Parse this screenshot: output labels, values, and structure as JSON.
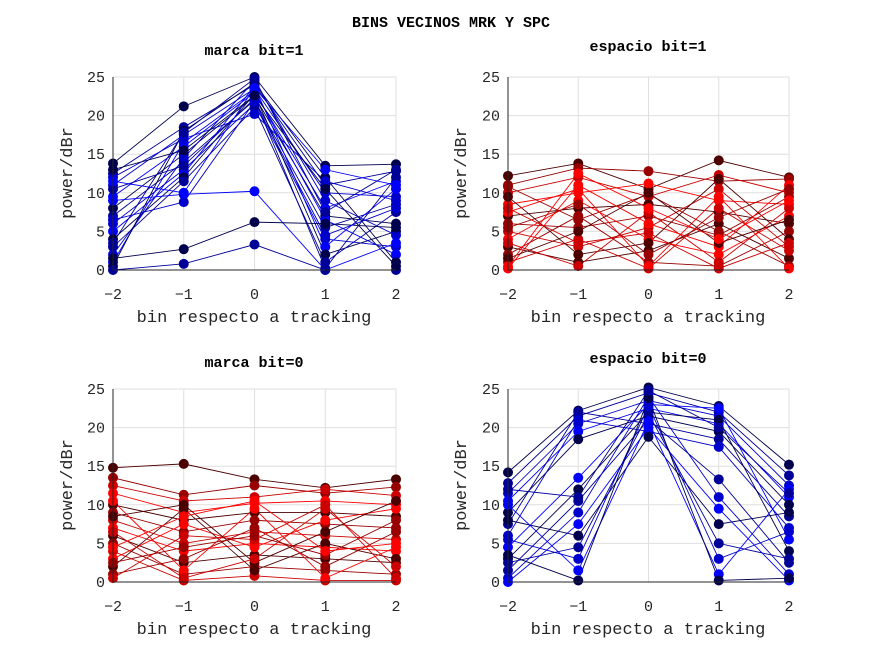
{
  "figure": {
    "suptitle": "BINS VECINOS MRK Y SPC"
  },
  "chart_data": [
    {
      "type": "line",
      "title": "marca bit=1",
      "xlabel": "bin respecto a tracking",
      "ylabel": "power/dBr",
      "x": [
        -2,
        -1,
        0,
        1,
        2
      ],
      "xticks": [
        "-2",
        "-1",
        "0",
        "1",
        "2"
      ],
      "yticks": [
        "0",
        "5",
        "10",
        "15",
        "20",
        "25"
      ],
      "xlim": [
        -2,
        2
      ],
      "ylim": [
        0,
        25
      ],
      "grid": true,
      "color_scheme": "blue",
      "colors": [
        "#00004d",
        "#000099",
        "#0000cc",
        "#0000ff"
      ],
      "series": [
        {
          "values": [
            13.8,
            21.2,
            25.0,
            13.5,
            13.7
          ]
        },
        {
          "values": [
            12.5,
            18.5,
            24.0,
            11.0,
            12.8
          ]
        },
        {
          "values": [
            11.0,
            17.5,
            23.5,
            10.0,
            9.5
          ]
        },
        {
          "values": [
            9.5,
            16.0,
            23.0,
            8.0,
            11.5
          ]
        },
        {
          "values": [
            8.0,
            15.0,
            22.5,
            7.0,
            6.0
          ]
        },
        {
          "values": [
            7.0,
            14.0,
            22.0,
            5.5,
            8.5
          ]
        },
        {
          "values": [
            6.0,
            13.0,
            21.5,
            4.0,
            3.0
          ]
        },
        {
          "values": [
            5.0,
            12.5,
            23.8,
            3.0,
            10.5
          ]
        },
        {
          "values": [
            4.0,
            12.0,
            22.8,
            2.0,
            5.0
          ]
        },
        {
          "values": [
            3.0,
            11.5,
            21.0,
            1.0,
            7.5
          ]
        },
        {
          "values": [
            2.0,
            14.5,
            24.5,
            9.0,
            4.5
          ]
        },
        {
          "values": [
            1.0,
            16.5,
            23.2,
            6.5,
            2.0
          ]
        },
        {
          "values": [
            0.5,
            18.0,
            24.2,
            12.0,
            1.0
          ]
        },
        {
          "values": [
            10.5,
            13.5,
            22.2,
            0.2,
            12.0
          ]
        },
        {
          "values": [
            12.0,
            17.0,
            20.2,
            11.5,
            9.0
          ]
        },
        {
          "values": [
            9.0,
            9.8,
            10.2,
            0.0,
            3.5
          ]
        },
        {
          "values": [
            1.5,
            2.7,
            6.2,
            6.0,
            5.5
          ]
        },
        {
          "values": [
            0.0,
            0.8,
            3.3,
            0.0,
            0.0
          ]
        },
        {
          "values": [
            6.5,
            8.8,
            21.8,
            4.5,
            8.0
          ]
        },
        {
          "values": [
            11.5,
            10.0,
            23.6,
            13.0,
            11.0
          ]
        },
        {
          "values": [
            13.0,
            15.5,
            22.6,
            10.5,
            0.5
          ]
        },
        {
          "values": [
            3.5,
            17.8,
            24.8,
            7.5,
            13.0
          ]
        }
      ]
    },
    {
      "type": "line",
      "title": "espacio bit=1",
      "xlabel": "bin respecto a tracking",
      "ylabel": "power/dBr",
      "x": [
        -2,
        -1,
        0,
        1,
        2
      ],
      "xticks": [
        "-2",
        "-1",
        "0",
        "1",
        "2"
      ],
      "yticks": [
        "0",
        "5",
        "10",
        "15",
        "20",
        "25"
      ],
      "xlim": [
        -2,
        2
      ],
      "ylim": [
        0,
        25
      ],
      "grid": true,
      "color_scheme": "red",
      "colors": [
        "#4d0000",
        "#990000",
        "#cc0000",
        "#ff0000"
      ],
      "series": [
        {
          "values": [
            12.2,
            13.8,
            10.5,
            14.2,
            12.0
          ]
        },
        {
          "values": [
            11.0,
            13.2,
            12.8,
            11.5,
            11.8
          ]
        },
        {
          "values": [
            10.0,
            12.0,
            9.5,
            12.3,
            10.0
          ]
        },
        {
          "values": [
            8.5,
            10.0,
            11.2,
            9.0,
            8.5
          ]
        },
        {
          "values": [
            7.0,
            8.0,
            8.5,
            7.5,
            6.0
          ]
        },
        {
          "values": [
            6.0,
            5.5,
            7.0,
            4.5,
            9.5
          ]
        },
        {
          "values": [
            5.0,
            3.0,
            5.5,
            10.5,
            3.0
          ]
        },
        {
          "values": [
            4.0,
            9.0,
            4.0,
            2.0,
            7.0
          ]
        },
        {
          "values": [
            3.0,
            1.0,
            2.5,
            6.0,
            1.5
          ]
        },
        {
          "values": [
            2.0,
            7.0,
            1.0,
            0.5,
            5.0
          ]
        },
        {
          "values": [
            1.0,
            4.0,
            0.2,
            8.0,
            2.5
          ]
        },
        {
          "values": [
            0.2,
            11.0,
            6.0,
            3.0,
            11.0
          ]
        },
        {
          "values": [
            9.5,
            2.0,
            3.5,
            11.8,
            4.0
          ]
        },
        {
          "values": [
            10.8,
            6.5,
            9.8,
            5.0,
            0.5
          ]
        },
        {
          "values": [
            3.5,
            0.5,
            7.5,
            1.0,
            8.0
          ]
        },
        {
          "values": [
            7.5,
            10.5,
            0.5,
            9.5,
            0.2
          ]
        },
        {
          "values": [
            1.5,
            5.0,
            10.0,
            3.5,
            6.5
          ]
        },
        {
          "values": [
            5.5,
            8.5,
            2.0,
            6.8,
            10.5
          ]
        },
        {
          "values": [
            8.0,
            3.5,
            4.8,
            0.2,
            3.5
          ]
        },
        {
          "values": [
            0.5,
            12.5,
            8.0,
            4.0,
            9.0
          ]
        }
      ]
    },
    {
      "type": "line",
      "title": "marca bit=0",
      "xlabel": "bin respecto a tracking",
      "ylabel": "power/dBr",
      "x": [
        -2,
        -1,
        0,
        1,
        2
      ],
      "xticks": [
        "-2",
        "-1",
        "0",
        "1",
        "2"
      ],
      "yticks": [
        "0",
        "5",
        "10",
        "15",
        "20",
        "25"
      ],
      "xlim": [
        -2,
        2
      ],
      "ylim": [
        0,
        25
      ],
      "grid": true,
      "color_scheme": "red",
      "colors": [
        "#4d0000",
        "#990000",
        "#cc0000",
        "#ff0000"
      ],
      "series": [
        {
          "values": [
            14.8,
            15.3,
            13.3,
            12.2,
            13.3
          ]
        },
        {
          "values": [
            13.5,
            11.3,
            12.5,
            11.5,
            12.3
          ]
        },
        {
          "values": [
            12.5,
            10.5,
            11.0,
            12.0,
            11.2
          ]
        },
        {
          "values": [
            11.5,
            9.0,
            10.2,
            10.5,
            10.0
          ]
        },
        {
          "values": [
            10.0,
            8.0,
            9.0,
            9.0,
            8.5
          ]
        },
        {
          "values": [
            9.0,
            6.5,
            8.0,
            7.5,
            7.0
          ]
        },
        {
          "values": [
            8.0,
            5.0,
            6.5,
            6.0,
            5.5
          ]
        },
        {
          "values": [
            7.0,
            4.0,
            5.0,
            4.5,
            4.0
          ]
        },
        {
          "values": [
            6.0,
            2.5,
            3.5,
            3.0,
            2.5
          ]
        },
        {
          "values": [
            5.0,
            1.0,
            2.0,
            1.5,
            1.0
          ]
        },
        {
          "values": [
            4.0,
            0.2,
            0.8,
            0.2,
            0.2
          ]
        },
        {
          "values": [
            3.0,
            7.5,
            4.5,
            8.0,
            9.5
          ]
        },
        {
          "values": [
            2.0,
            9.5,
            1.5,
            5.0,
            3.0
          ]
        },
        {
          "values": [
            1.0,
            3.0,
            7.0,
            2.0,
            6.5
          ]
        },
        {
          "values": [
            0.5,
            6.0,
            5.5,
            10.0,
            0.5
          ]
        },
        {
          "values": [
            10.5,
            1.5,
            9.5,
            0.5,
            4.5
          ]
        },
        {
          "values": [
            8.5,
            10.0,
            2.5,
            6.5,
            10.5
          ]
        },
        {
          "values": [
            2.5,
            4.5,
            6.0,
            3.5,
            8.0
          ]
        },
        {
          "values": [
            6.5,
            0.5,
            3.0,
            9.5,
            2.0
          ]
        },
        {
          "values": [
            4.5,
            8.5,
            10.5,
            4.0,
            5.0
          ]
        }
      ]
    },
    {
      "type": "line",
      "title": "espacio bit=0",
      "xlabel": "bin respecto a tracking",
      "ylabel": "power/dBr",
      "x": [
        -2,
        -1,
        0,
        1,
        2
      ],
      "xticks": [
        "-2",
        "-1",
        "0",
        "1",
        "2"
      ],
      "yticks": [
        "0",
        "5",
        "10",
        "15",
        "20",
        "25"
      ],
      "xlim": [
        -2,
        2
      ],
      "ylim": [
        0,
        25
      ],
      "grid": true,
      "color_scheme": "blue",
      "colors": [
        "#00004d",
        "#000099",
        "#0000cc",
        "#0000ff"
      ],
      "series": [
        {
          "values": [
            14.2,
            22.2,
            25.2,
            22.8,
            15.2
          ]
        },
        {
          "values": [
            12.8,
            21.5,
            24.5,
            22.0,
            13.8
          ]
        },
        {
          "values": [
            11.5,
            20.5,
            23.5,
            21.5,
            12.5
          ]
        },
        {
          "values": [
            10.5,
            19.5,
            22.5,
            20.5,
            11.0
          ]
        },
        {
          "values": [
            9.0,
            18.5,
            21.5,
            19.5,
            10.0
          ]
        },
        {
          "values": [
            7.5,
            22.0,
            20.5,
            18.5,
            8.5
          ]
        },
        {
          "values": [
            6.0,
            21.0,
            19.5,
            17.5,
            7.0
          ]
        },
        {
          "values": [
            4.5,
            13.5,
            23.0,
            22.5,
            5.5
          ]
        },
        {
          "values": [
            3.0,
            12.0,
            22.0,
            21.0,
            4.0
          ]
        },
        {
          "values": [
            1.5,
            10.5,
            21.0,
            13.3,
            2.5
          ]
        },
        {
          "values": [
            0.5,
            9.0,
            24.0,
            11.0,
            1.0
          ]
        },
        {
          "values": [
            0.0,
            7.5,
            20.0,
            9.5,
            0.2
          ]
        },
        {
          "values": [
            8.0,
            6.0,
            18.8,
            7.5,
            9.0
          ]
        },
        {
          "values": [
            2.5,
            4.5,
            21.8,
            5.0,
            3.0
          ]
        },
        {
          "values": [
            5.5,
            3.0,
            22.8,
            3.0,
            6.5
          ]
        },
        {
          "values": [
            10.0,
            1.5,
            20.8,
            1.0,
            12.0
          ]
        },
        {
          "values": [
            3.5,
            0.2,
            23.8,
            0.2,
            0.5
          ]
        },
        {
          "values": [
            12.0,
            11.0,
            24.8,
            20.0,
            11.5
          ]
        }
      ]
    }
  ]
}
